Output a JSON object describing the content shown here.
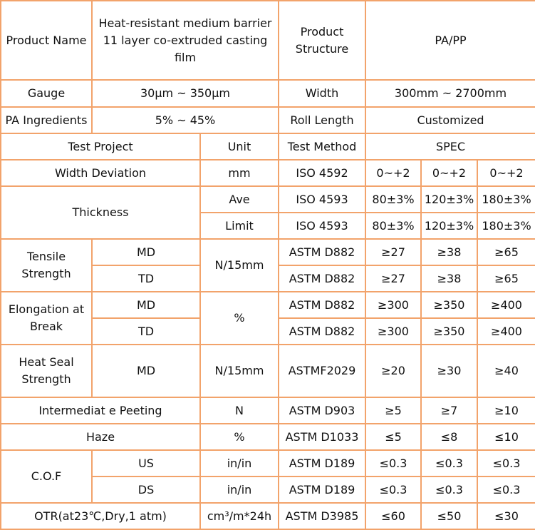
{
  "colors": {
    "border": "#f2a36b",
    "text": "#111111",
    "background": "#ffffff"
  },
  "header": {
    "product_name_label": "Product Name",
    "product_name_value": "Heat-resistant medium barrier 11 layer co-extruded casting film",
    "structure_label": "Product Structure",
    "structure_value": "PA/PP",
    "gauge_label": "Gauge",
    "gauge_value": "30μm ~ 350μm",
    "width_label": "Width",
    "width_value": "300mm ~ 2700mm",
    "pa_label": "PA Ingredients",
    "pa_value": "5% ~ 45%",
    "roll_label": "Roll Length",
    "roll_value": "Customized"
  },
  "columns": {
    "test_project": "Test Project",
    "unit": "Unit",
    "test_method": "Test Method",
    "spec": "SPEC"
  },
  "rows": {
    "width_dev": {
      "name": "Width Deviation",
      "unit": "mm",
      "method": "ISO 4592",
      "values": [
        "0~+2",
        "0~+2",
        "0~+2"
      ]
    },
    "thickness": {
      "name": "Thickness",
      "ave": {
        "sub": "Ave",
        "method": "ISO 4593",
        "values": [
          "80±3%",
          "120±3%",
          "180±3%"
        ]
      },
      "limit": {
        "sub": "Limit",
        "method": "ISO 4593",
        "values": [
          "80±3%",
          "120±3%",
          "180±3%"
        ]
      }
    },
    "tensile": {
      "name": "Tensile Strength",
      "unit": "N/15mm",
      "md": {
        "sub": "MD",
        "method": "ASTM D882",
        "values": [
          "≥27",
          "≥38",
          "≥65"
        ]
      },
      "td": {
        "sub": "TD",
        "method": "ASTM D882",
        "values": [
          "≥27",
          "≥38",
          "≥65"
        ]
      }
    },
    "elongation": {
      "name": "Elongation at Break",
      "unit": "%",
      "md": {
        "sub": "MD",
        "method": "ASTM D882",
        "values": [
          "≥300",
          "≥350",
          "≥400"
        ]
      },
      "td": {
        "sub": "TD",
        "method": "ASTM D882",
        "values": [
          "≥300",
          "≥350",
          "≥400"
        ]
      }
    },
    "heat_seal": {
      "name": "Heat Seal Strength",
      "sub": "MD",
      "unit": "N/15mm",
      "method": "ASTMF2029",
      "values": [
        "≥20",
        "≥30",
        "≥40"
      ]
    },
    "intermediate": {
      "name": "Intermediat e Peeting",
      "unit": "N",
      "method": "ASTM D903",
      "values": [
        "≥5",
        "≥7",
        "≥10"
      ]
    },
    "haze": {
      "name": "Haze",
      "unit": "%",
      "method": "ASTM D1033",
      "values": [
        "≤5",
        "≤8",
        "≤10"
      ]
    },
    "cof": {
      "name": "C.O.F",
      "us": {
        "sub": "US",
        "unit": "in/in",
        "method": "ASTM D189",
        "values": [
          "≤0.3",
          "≤0.3",
          "≤0.3"
        ]
      },
      "ds": {
        "sub": "DS",
        "unit": "in/in",
        "method": "ASTM D189",
        "values": [
          "≤0.3",
          "≤0.3",
          "≤0.3"
        ]
      }
    },
    "otr": {
      "name": "OTR(at23℃,Dry,1 atm)",
      "unit": "cm³/m*24h",
      "method": "ASTM D3985",
      "values": [
        "≤60",
        "≤50",
        "≤30"
      ]
    }
  }
}
